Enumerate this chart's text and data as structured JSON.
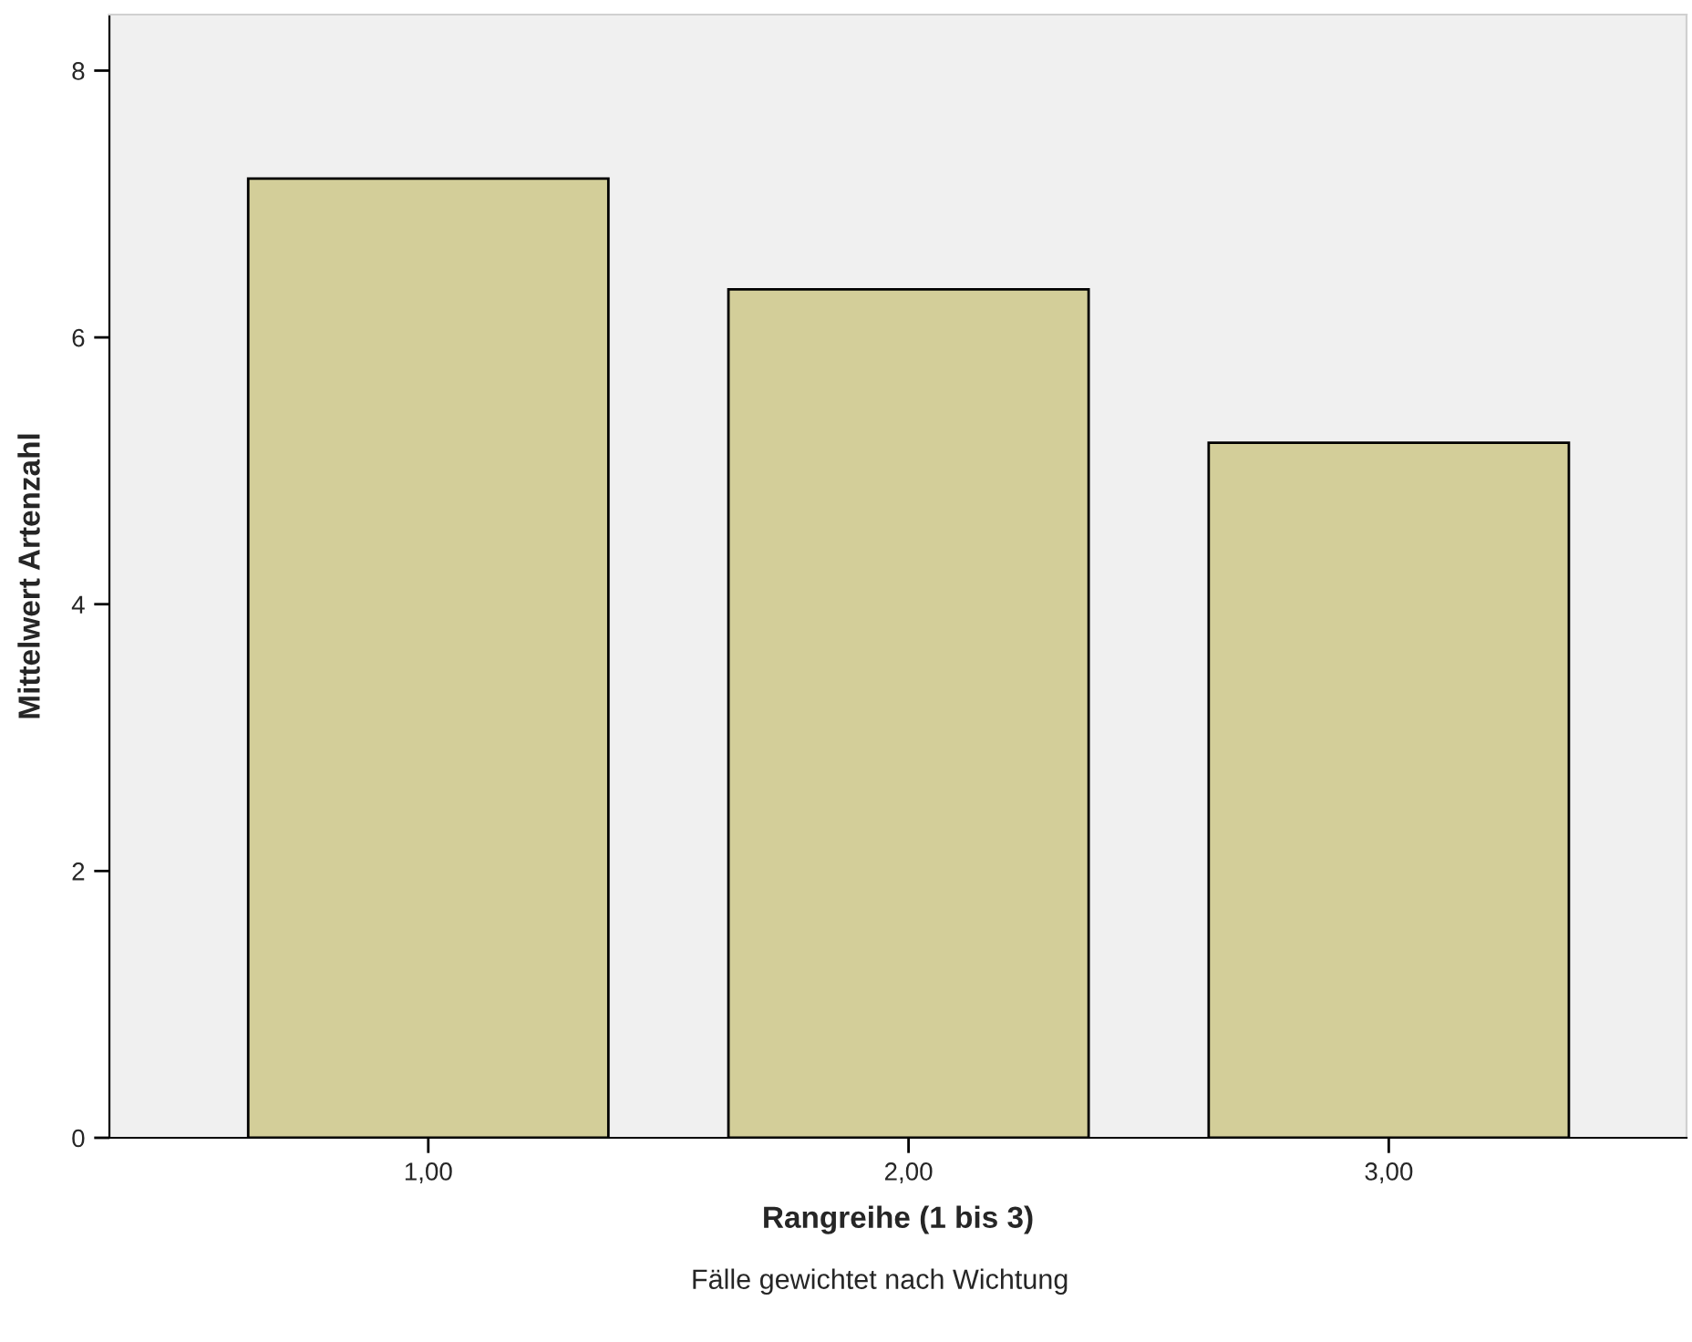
{
  "chart_data": {
    "type": "bar",
    "xlabel": "Rangreihe (1 bis 3)",
    "ylabel": "Mittelwert Artenzahl",
    "categories": [
      "1,00",
      "2,00",
      "3,00"
    ],
    "values": [
      7.19,
      6.36,
      5.21
    ],
    "color": "#d3ce99",
    "ylim": [
      0,
      8.42
    ],
    "yticks": [
      0,
      2,
      4,
      6,
      8
    ],
    "grid": false,
    "legend": false,
    "annotations": [
      "Fälle gewichtet nach Wichtung"
    ]
  }
}
